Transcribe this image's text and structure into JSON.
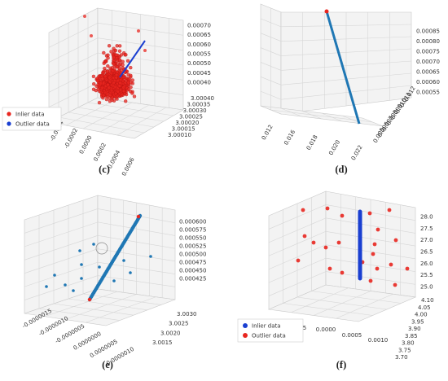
{
  "figure": {
    "panels": [
      {
        "id": "c",
        "caption": "(c)"
      },
      {
        "id": "d",
        "caption": "(d)"
      },
      {
        "id": "e",
        "caption": "(e)"
      },
      {
        "id": "f",
        "caption": "(f)"
      }
    ]
  },
  "colors": {
    "inlier_red": "#e8261f",
    "outlier_blue": "#1a3fd1",
    "line_blue": "#1f77b4",
    "grid": "#d6d6d6"
  },
  "chart_data": [
    {
      "panel": "c",
      "type": "scatter",
      "projection": "3d",
      "x_ticks": [
        "-0.0004",
        "-0.0002",
        "0.0000",
        "0.0002",
        "0.0004",
        "0.0006"
      ],
      "y_ticks": [
        "3.00010",
        "3.00015",
        "3.00020",
        "3.00025",
        "3.00030",
        "3.00035",
        "3.00040"
      ],
      "z_ticks": [
        "0.00040",
        "0.00045",
        "0.00050",
        "0.00055",
        "0.00060",
        "0.00065",
        "0.00070"
      ],
      "legend": {
        "position": "left",
        "entries": [
          "Inlier data",
          "Outlier data"
        ]
      },
      "series": [
        {
          "name": "Inlier data",
          "marker": "circle",
          "color": "#e8261f",
          "description_count": 800
        },
        {
          "name": "Outlier data",
          "marker": "line",
          "color": "#1a3fd1"
        }
      ],
      "grid": true
    },
    {
      "panel": "d",
      "type": "line",
      "projection": "3d",
      "x_ticks": [
        "0.012",
        "0.016",
        "0.018",
        "0.020",
        "0.022"
      ],
      "y_ticks": [
        "0.005",
        "0.006",
        "0.007",
        "0.008",
        "0.009",
        "0.010",
        "0.011",
        "0.012"
      ],
      "z_ticks": [
        "0.00055",
        "0.00060",
        "0.00065",
        "0.00070",
        "0.00075",
        "0.00080",
        "0.00085"
      ],
      "series": [
        {
          "color": "#1f77b4",
          "start": {
            "x": 0.012,
            "y": 0.012,
            "z": 0.00085
          },
          "end": {
            "x": 0.022,
            "y": 0.005,
            "z": 0.00055
          }
        }
      ],
      "grid": true
    },
    {
      "panel": "e",
      "type": "scatter",
      "projection": "3d",
      "x_ticks": [
        "-0.0000015",
        "-0.0000010",
        "-0.0000005",
        "0.0000000",
        "0.0000005",
        "0.0000010"
      ],
      "y_ticks": [
        "3.0015",
        "3.0020",
        "3.0025",
        "3.0030"
      ],
      "z_ticks": [
        "0.000425",
        "0.000450",
        "0.000475",
        "0.000500",
        "0.000525",
        "0.000550",
        "0.000575",
        "0.000600"
      ],
      "series": [
        {
          "color": "#1f77b4",
          "marker": "line-of-points"
        },
        {
          "color": "#e8261f",
          "marker": "circle"
        }
      ],
      "grid": true
    },
    {
      "panel": "f",
      "type": "scatter",
      "projection": "3d",
      "x_ticks": [
        "5",
        "0.0000",
        "0.0005",
        "0.0010"
      ],
      "y_ticks": [
        "3.70",
        "3.75",
        "3.80",
        "3.85",
        "3.90",
        "3.95",
        "4.00",
        "4.05",
        "4.10"
      ],
      "z_ticks": [
        "25.0",
        "25.5",
        "26.0",
        "26.5",
        "27.0",
        "27.5",
        "28.0"
      ],
      "legend": {
        "position": "bottom-left",
        "entries": [
          "Inlier data",
          "Outlier data"
        ]
      },
      "series": [
        {
          "name": "Inlier data",
          "color": "#1a3fd1",
          "marker": "circle"
        },
        {
          "name": "Outlier data",
          "color": "#e8261f",
          "marker": "circle"
        }
      ],
      "grid": true
    }
  ]
}
